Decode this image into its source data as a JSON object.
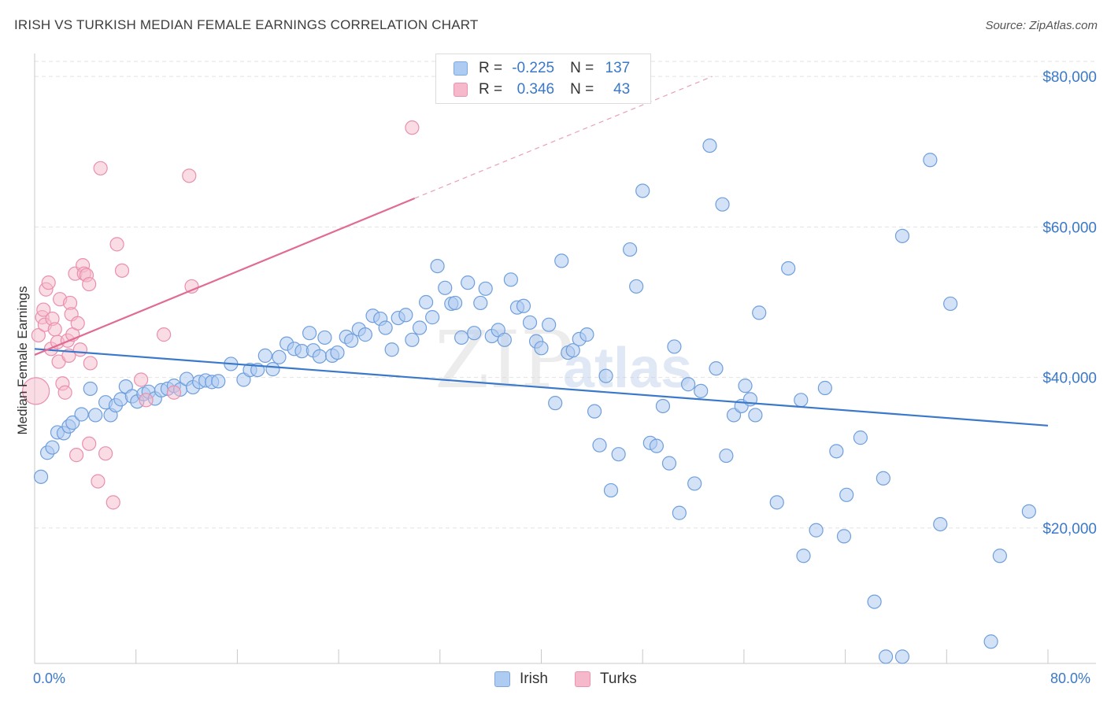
{
  "header": {
    "title": "IRISH VS TURKISH MEDIAN FEMALE EARNINGS CORRELATION CHART",
    "source": "Source: ZipAtlas.com"
  },
  "legend_top": {
    "rows": [
      {
        "r_label": "R =",
        "r_value": "-0.225",
        "n_label": "N =",
        "n_value": "137"
      },
      {
        "r_label": "R =",
        "r_value": "0.346",
        "n_label": "N =",
        "n_value": "43"
      }
    ]
  },
  "legend_bottom": {
    "irish": "Irish",
    "turks": "Turks"
  },
  "watermark": {
    "zip": "ZIP",
    "atlas": "atlas"
  },
  "colors": {
    "irish": "#3a78c9",
    "turks": "#e06b93",
    "irish_fill": "#aecbf1",
    "turks_fill": "#f6b9cc"
  },
  "chart_data": {
    "type": "scatter",
    "title": "IRISH VS TURKISH MEDIAN FEMALE EARNINGS CORRELATION CHART",
    "xlabel": "",
    "ylabel": "Median Female Earnings",
    "xlim": [
      0,
      80
    ],
    "ylim": [
      2000,
      82000
    ],
    "x_tick_labels": [
      "0.0%",
      "80.0%"
    ],
    "y_ticks": [
      20000,
      40000,
      60000,
      80000
    ],
    "y_tick_labels": [
      "$20,000",
      "$40,000",
      "$60,000",
      "$80,000"
    ],
    "grid": true,
    "series": [
      {
        "name": "Irish",
        "r": -0.225,
        "n": 137,
        "trend": {
          "x": [
            0,
            80
          ],
          "y": [
            43800,
            33600
          ]
        },
        "points": [
          [
            0.5,
            26800
          ],
          [
            1,
            30000
          ],
          [
            1.4,
            30700
          ],
          [
            1.8,
            32700
          ],
          [
            2.3,
            32600
          ],
          [
            2.7,
            33500
          ],
          [
            3,
            34000
          ],
          [
            3.7,
            35100
          ],
          [
            4.4,
            38500
          ],
          [
            4.8,
            35000
          ],
          [
            5.6,
            36700
          ],
          [
            6,
            35000
          ],
          [
            6.4,
            36300
          ],
          [
            6.8,
            37100
          ],
          [
            7.2,
            38800
          ],
          [
            7.7,
            37500
          ],
          [
            8.1,
            36800
          ],
          [
            8.6,
            37800
          ],
          [
            9,
            38100
          ],
          [
            9.5,
            37200
          ],
          [
            10,
            38300
          ],
          [
            10.5,
            38500
          ],
          [
            11,
            38900
          ],
          [
            11.5,
            38400
          ],
          [
            12,
            39800
          ],
          [
            12.5,
            38700
          ],
          [
            13,
            39400
          ],
          [
            13.5,
            39600
          ],
          [
            14,
            39400
          ],
          [
            14.5,
            39500
          ],
          [
            15.5,
            41800
          ],
          [
            16.5,
            39700
          ],
          [
            17,
            41000
          ],
          [
            17.6,
            41000
          ],
          [
            18.2,
            42900
          ],
          [
            18.8,
            41100
          ],
          [
            19.3,
            42700
          ],
          [
            19.9,
            44500
          ],
          [
            20.5,
            43800
          ],
          [
            21.1,
            43500
          ],
          [
            21.7,
            45900
          ],
          [
            22,
            43600
          ],
          [
            22.5,
            42800
          ],
          [
            22.9,
            45300
          ],
          [
            23.5,
            42900
          ],
          [
            23.9,
            43300
          ],
          [
            24.6,
            45400
          ],
          [
            25,
            44900
          ],
          [
            25.6,
            46400
          ],
          [
            26.1,
            45700
          ],
          [
            26.7,
            48200
          ],
          [
            27.3,
            47800
          ],
          [
            27.7,
            46600
          ],
          [
            28.2,
            43700
          ],
          [
            28.7,
            47900
          ],
          [
            29.3,
            48300
          ],
          [
            29.8,
            45000
          ],
          [
            30.4,
            46600
          ],
          [
            30.9,
            50000
          ],
          [
            31.4,
            48000
          ],
          [
            31.8,
            54800
          ],
          [
            32.4,
            51900
          ],
          [
            32.9,
            49800
          ],
          [
            33.2,
            49900
          ],
          [
            33.7,
            45300
          ],
          [
            34.2,
            52600
          ],
          [
            34.7,
            45900
          ],
          [
            35.2,
            49900
          ],
          [
            35.6,
            51800
          ],
          [
            36.1,
            45500
          ],
          [
            36.6,
            46300
          ],
          [
            37.1,
            45000
          ],
          [
            37.6,
            53000
          ],
          [
            38.1,
            49300
          ],
          [
            38.6,
            49500
          ],
          [
            39.1,
            47300
          ],
          [
            39.6,
            44800
          ],
          [
            40,
            43900
          ],
          [
            40.6,
            47000
          ],
          [
            41.1,
            36600
          ],
          [
            41.6,
            55500
          ],
          [
            42.1,
            43300
          ],
          [
            42.5,
            43600
          ],
          [
            43,
            45100
          ],
          [
            43.6,
            45700
          ],
          [
            44.2,
            35500
          ],
          [
            44.6,
            31000
          ],
          [
            45.1,
            40200
          ],
          [
            45.5,
            25000
          ],
          [
            46.1,
            29800
          ],
          [
            47,
            57000
          ],
          [
            47.5,
            52100
          ],
          [
            48,
            64800
          ],
          [
            48.6,
            31300
          ],
          [
            49.1,
            30900
          ],
          [
            49.6,
            36200
          ],
          [
            50.1,
            28600
          ],
          [
            50.5,
            44100
          ],
          [
            50.9,
            22000
          ],
          [
            51.6,
            39100
          ],
          [
            52.1,
            25900
          ],
          [
            52.6,
            38200
          ],
          [
            53.3,
            70800
          ],
          [
            53.8,
            41200
          ],
          [
            54.3,
            63000
          ],
          [
            54.6,
            29600
          ],
          [
            55.2,
            35000
          ],
          [
            55.8,
            36200
          ],
          [
            56.1,
            38900
          ],
          [
            56.5,
            37100
          ],
          [
            56.9,
            35000
          ],
          [
            57.2,
            48600
          ],
          [
            58.6,
            23400
          ],
          [
            59.5,
            54500
          ],
          [
            60.5,
            37000
          ],
          [
            60.7,
            16300
          ],
          [
            61.7,
            19700
          ],
          [
            62.4,
            38600
          ],
          [
            63.3,
            30200
          ],
          [
            63.9,
            18900
          ],
          [
            64.1,
            24400
          ],
          [
            65.2,
            32000
          ],
          [
            66.3,
            10200
          ],
          [
            67,
            26600
          ],
          [
            67.2,
            2900
          ],
          [
            68.5,
            58800
          ],
          [
            68.5,
            2900
          ],
          [
            70.7,
            68900
          ],
          [
            71.5,
            20500
          ],
          [
            72.3,
            49800
          ],
          [
            75.5,
            4900
          ],
          [
            76.2,
            16300
          ],
          [
            78.5,
            22200
          ]
        ]
      },
      {
        "name": "Turks",
        "r": 0.346,
        "n": 43,
        "trend": {
          "x": [
            0,
            30
          ],
          "y": [
            43000,
            63800
          ]
        },
        "trend_extension": {
          "x": [
            30,
            53.5
          ],
          "y": [
            63800,
            80000
          ]
        },
        "points": [
          [
            0.1,
            38200
          ],
          [
            0.3,
            45600
          ],
          [
            0.6,
            48000
          ],
          [
            0.7,
            49000
          ],
          [
            0.8,
            47000
          ],
          [
            0.9,
            51700
          ],
          [
            1.1,
            52600
          ],
          [
            1.3,
            43800
          ],
          [
            1.4,
            47800
          ],
          [
            1.6,
            46400
          ],
          [
            1.8,
            44700
          ],
          [
            1.9,
            42100
          ],
          [
            2,
            50400
          ],
          [
            2.2,
            39200
          ],
          [
            2.4,
            38000
          ],
          [
            2.6,
            44900
          ],
          [
            2.7,
            42900
          ],
          [
            2.8,
            49900
          ],
          [
            2.9,
            48400
          ],
          [
            3,
            45700
          ],
          [
            3.2,
            53800
          ],
          [
            3.3,
            29700
          ],
          [
            3.4,
            47200
          ],
          [
            3.6,
            43700
          ],
          [
            3.8,
            54900
          ],
          [
            3.9,
            53800
          ],
          [
            4.1,
            53600
          ],
          [
            4.3,
            52400
          ],
          [
            4.4,
            41900
          ],
          [
            4.3,
            31200
          ],
          [
            5,
            26200
          ],
          [
            5.2,
            67800
          ],
          [
            5.6,
            29900
          ],
          [
            6.2,
            23400
          ],
          [
            6.5,
            57700
          ],
          [
            8.4,
            39700
          ],
          [
            8.8,
            37000
          ],
          [
            10.2,
            45700
          ],
          [
            11,
            38000
          ],
          [
            12.2,
            66800
          ],
          [
            12.4,
            52100
          ],
          [
            29.8,
            73200
          ],
          [
            6.9,
            54200
          ]
        ]
      }
    ]
  }
}
